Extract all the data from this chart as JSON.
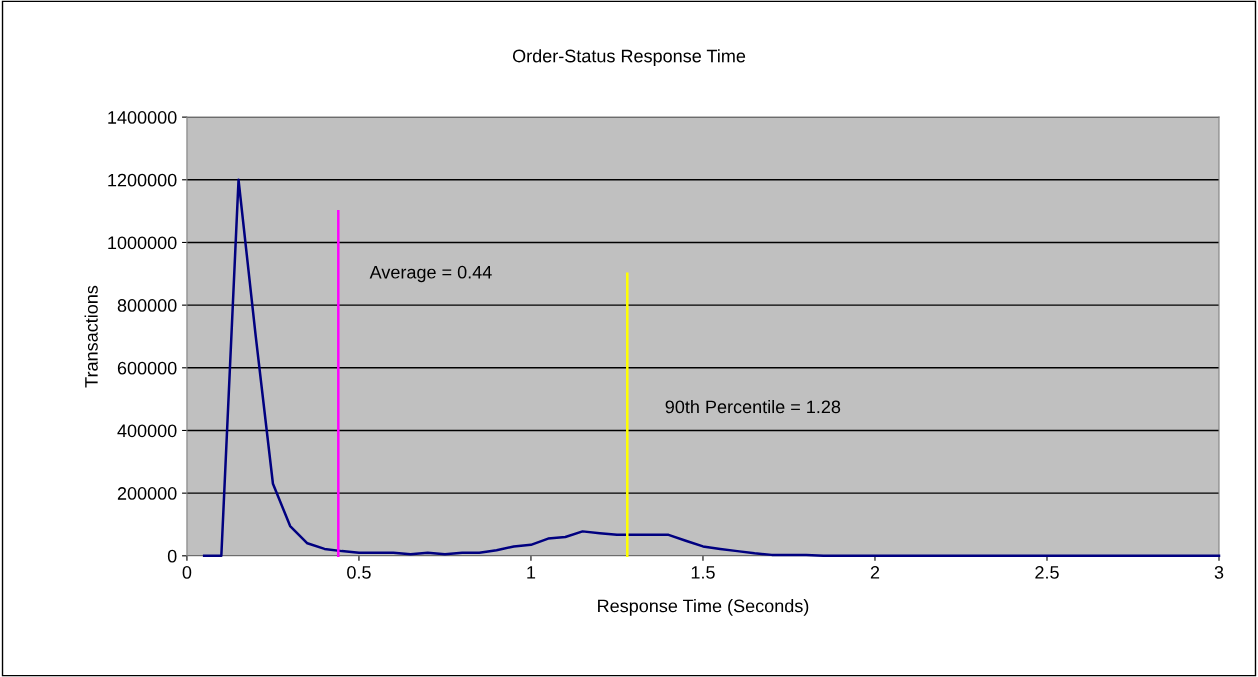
{
  "chart_data": {
    "type": "line",
    "title": "Order-Status Response Time",
    "xlabel": "Response Time (Seconds)",
    "ylabel": "Transactions",
    "xlim": [
      0,
      3
    ],
    "xticks": [
      0,
      0.5,
      1,
      1.5,
      2,
      2.5,
      3
    ],
    "ylim": [
      0,
      1400000
    ],
    "yticks": [
      0,
      200000,
      400000,
      600000,
      800000,
      1000000,
      1200000,
      1400000
    ],
    "grid": "y",
    "legend": false,
    "series": [
      {
        "color": "#000080",
        "x": [
          0.05,
          0.1,
          0.15,
          0.2,
          0.25,
          0.3,
          0.35,
          0.4,
          0.45,
          0.5,
          0.55,
          0.6,
          0.65,
          0.7,
          0.75,
          0.8,
          0.85,
          0.9,
          0.95,
          1.0,
          1.05,
          1.1,
          1.15,
          1.2,
          1.25,
          1.3,
          1.35,
          1.4,
          1.45,
          1.5,
          1.55,
          1.6,
          1.65,
          1.7,
          1.75,
          1.8,
          1.85,
          1.9,
          1.95,
          2.0,
          2.5,
          3.0
        ],
        "values": [
          0,
          0,
          1200000,
          700000,
          230000,
          95000,
          40000,
          22000,
          15000,
          10000,
          10000,
          10000,
          5000,
          10000,
          5000,
          10000,
          10000,
          18000,
          30000,
          35000,
          55000,
          60000,
          78000,
          72000,
          67000,
          67000,
          67000,
          67000,
          48000,
          30000,
          22000,
          15000,
          8000,
          3000,
          3000,
          3000,
          0,
          0,
          0,
          0,
          0,
          0
        ]
      },
      {
        "type": "line",
        "color": "#ff00ff",
        "x": [
          0.44,
          0.44
        ],
        "values": [
          0,
          1100000
        ]
      },
      {
        "type": "line",
        "color": "#ffff00",
        "x": [
          1.28,
          1.28
        ],
        "values": [
          0,
          900000
        ]
      }
    ],
    "annotations": [
      "Average = 0.44",
      "90th Percentile = 1.28"
    ]
  }
}
